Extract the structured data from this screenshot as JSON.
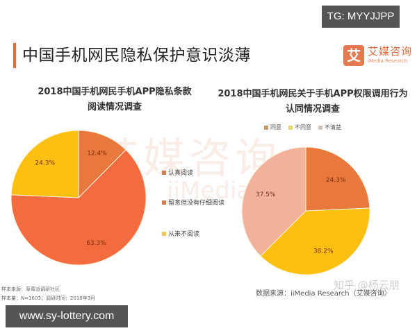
{
  "badges": {
    "tg": "TG: MYYJJPP",
    "url": "www.sy-lottery.com"
  },
  "header": {
    "title": "中国手机网民隐私保护意识淡薄",
    "logo": {
      "icon_char": "艾",
      "name_cn": "艾媒咨询",
      "name_en": "iMedia Research"
    }
  },
  "watermark": {
    "cn": "艾媒咨询",
    "en": "iiMedia"
  },
  "colors": {
    "accent": "#e0693e",
    "orange_dark": "#e8783c",
    "orange_red": "#f46b3f",
    "yellow": "#fcc010",
    "pink": "#f2b29a"
  },
  "chart_data": [
    {
      "type": "pie",
      "title": "2018中国手机网民手机APP隐私条款阅读情况调查",
      "title_lines": [
        "2018中国手机网民手机APP隐私条款",
        "阅读情况调查"
      ],
      "categories": [
        "认真阅读",
        "留意但没有仔细阅读",
        "从来不阅读"
      ],
      "values": [
        12.4,
        63.3,
        24.3
      ],
      "labels": [
        "12.4%",
        "63.3%",
        "24.3%"
      ],
      "colors": [
        "#e8783c",
        "#f46b3f",
        "#fcc010"
      ],
      "legend_position": "right"
    },
    {
      "type": "pie",
      "title": "2018中国手机网民关于手机APP权限调用行为认同情况调查",
      "title_lines": [
        "2018中国手机网民关于手机APP权限调用行为",
        "认同情况调查"
      ],
      "categories": [
        "同意",
        "不同意",
        "不清楚"
      ],
      "values": [
        24.3,
        38.2,
        37.5
      ],
      "labels": [
        "24.3%",
        "38.2%",
        "37.5%"
      ],
      "colors": [
        "#e8783c",
        "#fcc010",
        "#f2b29a"
      ],
      "legend_position": "top"
    }
  ],
  "footer": {
    "sample_source": "样本来源：草莓派调研社区",
    "sample_size": "样本量：N=1603；调研时间：2018年3月",
    "data_source": "数据来源：iiMedia Research（艾媒咨询）",
    "zhihu": "知乎 @杨云朋"
  }
}
